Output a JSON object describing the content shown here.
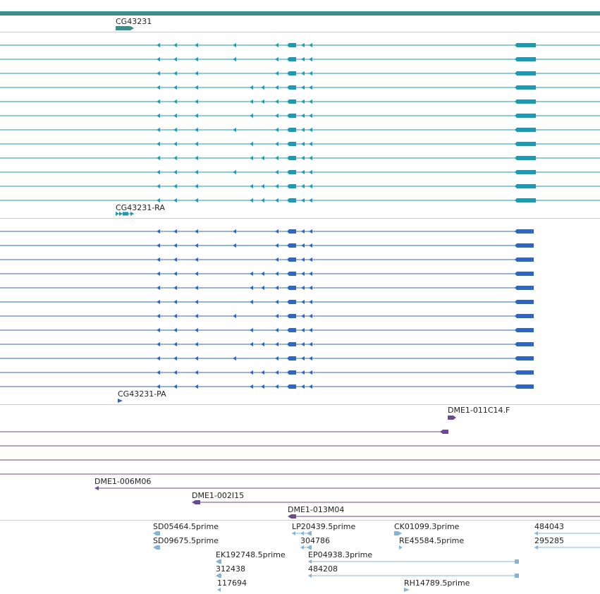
{
  "colors": {
    "gene": "#3a8d8d",
    "transcript": "#1a9bb3",
    "cds": "#2f65c6",
    "clone": "#6a4a96",
    "est": "#86b4d8",
    "separator": "#cfcfcf"
  },
  "gene_track": {
    "label": "CG43231"
  },
  "transcript_track": {
    "label": "CG43231-RA",
    "row_count": 12
  },
  "protein_track": {
    "label": "CG43231-PA",
    "row_count": 12
  },
  "clone_track": {
    "items": [
      {
        "label": "DME1-011C14.F"
      },
      {
        "label": "DME1-006M06"
      },
      {
        "label": "DME1-002I15"
      },
      {
        "label": "DME1-013M04"
      }
    ]
  },
  "est_track": {
    "items": [
      {
        "label": "SD05464.5prime",
        "strand": "-"
      },
      {
        "label": "SD09675.5prime",
        "strand": "-"
      },
      {
        "label": "LP20439.5prime",
        "strand": "-"
      },
      {
        "label": "304786",
        "strand": "-"
      },
      {
        "label": "CK01099.3prime",
        "strand": "+"
      },
      {
        "label": "RE45584.5prime",
        "strand": "+"
      },
      {
        "label": "484043",
        "strand": "-"
      },
      {
        "label": "295285",
        "strand": "-"
      },
      {
        "label": "EK192748.5prime",
        "strand": "-"
      },
      {
        "label": "312438",
        "strand": "-"
      },
      {
        "label": "117694",
        "strand": "-"
      },
      {
        "label": "EP04938.3prime",
        "strand": "-"
      },
      {
        "label": "484208",
        "strand": "-"
      },
      {
        "label": "RH14789.5prime",
        "strand": "+"
      }
    ]
  }
}
